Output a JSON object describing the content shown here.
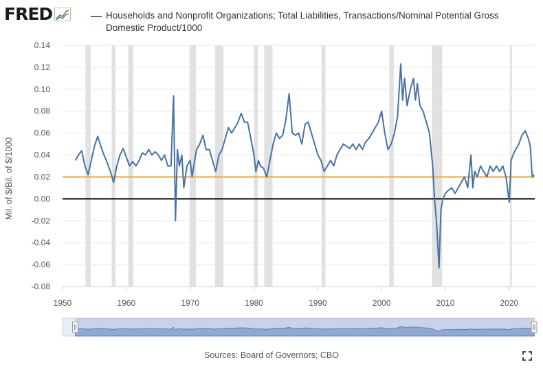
{
  "header": {
    "logo_text": "FRED",
    "legend_label": "Households and Nonprofit Organizations; Total Liabilities, Transactions/Nominal Potential Gross Domestic Product/1000"
  },
  "footer": {
    "sources": "Sources: Board of Governors; CBO"
  },
  "colors": {
    "series": "#4572a7",
    "reference_line": "#f5a623",
    "zero_line": "#000000",
    "recession": "#e1e1e1"
  },
  "icons": {
    "logo": "fred-line-chart-icon",
    "fullscreen": "fullscreen-icon"
  },
  "navigator": {
    "range_start": 1952,
    "range_end": 2023.9
  },
  "chart_data": {
    "type": "line",
    "title": "Households and Nonprofit Organizations; Total Liabilities, Transactions/Nominal Potential Gross Domestic Product/1000",
    "xlabel": "",
    "ylabel": "Mil. of $/Bil. of $/1000",
    "xlim": [
      1950,
      2024
    ],
    "ylim": [
      -0.08,
      0.14
    ],
    "x_ticks": [
      1950,
      1960,
      1970,
      1980,
      1990,
      2000,
      2010,
      2020
    ],
    "y_ticks": [
      -0.08,
      -0.06,
      -0.04,
      -0.02,
      0.0,
      0.02,
      0.04,
      0.06,
      0.08,
      0.1,
      0.12,
      0.14
    ],
    "y_tick_labels": [
      "-0.08",
      "-0.06",
      "-0.04",
      "-0.02",
      "0.00",
      "0.02",
      "0.04",
      "0.06",
      "0.08",
      "0.10",
      "0.12",
      "0.14"
    ],
    "grid": true,
    "reference_lines": [
      {
        "name": "threshold",
        "y": 0.02,
        "color": "#f5a623"
      },
      {
        "name": "zero",
        "y": 0.0,
        "color": "#000000"
      }
    ],
    "recessions": [
      [
        1953.6,
        1954.4
      ],
      [
        1957.7,
        1958.3
      ],
      [
        1960.3,
        1961.1
      ],
      [
        1969.9,
        1970.9
      ],
      [
        1973.9,
        1975.2
      ],
      [
        1980.0,
        1980.6
      ],
      [
        1981.6,
        1982.9
      ],
      [
        1990.6,
        1991.2
      ],
      [
        2001.2,
        2001.9
      ],
      [
        2007.9,
        2009.5
      ],
      [
        2020.1,
        2020.4
      ]
    ],
    "series": [
      {
        "name": "Households and Nonprofit Organizations; Total Liabilities, Transactions/Nominal Potential Gross Domestic Product/1000",
        "x": [
          1952.0,
          1952.5,
          1953.0,
          1953.5,
          1954.0,
          1954.5,
          1955.0,
          1955.5,
          1956.0,
          1956.5,
          1957.0,
          1957.5,
          1958.0,
          1958.5,
          1959.0,
          1959.5,
          1960.0,
          1960.5,
          1961.0,
          1961.5,
          1962.0,
          1962.5,
          1963.0,
          1963.5,
          1964.0,
          1964.5,
          1965.0,
          1965.5,
          1966.0,
          1966.5,
          1967.0,
          1967.4,
          1967.7,
          1968.0,
          1968.3,
          1968.7,
          1969.0,
          1969.5,
          1970.0,
          1970.3,
          1970.7,
          1971.0,
          1971.5,
          1972.0,
          1972.5,
          1973.0,
          1973.5,
          1974.0,
          1974.5,
          1975.0,
          1975.5,
          1976.0,
          1976.5,
          1977.0,
          1977.5,
          1978.0,
          1978.5,
          1979.0,
          1979.5,
          1980.0,
          1980.3,
          1980.7,
          1981.0,
          1981.5,
          1982.0,
          1982.5,
          1983.0,
          1983.5,
          1984.0,
          1984.5,
          1985.0,
          1985.5,
          1986.0,
          1986.5,
          1987.0,
          1987.5,
          1988.0,
          1988.5,
          1989.0,
          1989.5,
          1990.0,
          1990.5,
          1991.0,
          1991.5,
          1992.0,
          1992.5,
          1993.0,
          1993.5,
          1994.0,
          1994.5,
          1995.0,
          1995.5,
          1996.0,
          1996.5,
          1997.0,
          1997.5,
          1998.0,
          1998.5,
          1999.0,
          1999.5,
          2000.0,
          2000.5,
          2001.0,
          2001.5,
          2002.0,
          2002.5,
          2003.0,
          2003.3,
          2003.6,
          2004.0,
          2004.5,
          2005.0,
          2005.3,
          2005.6,
          2006.0,
          2006.5,
          2007.0,
          2007.5,
          2008.0,
          2008.3,
          2008.6,
          2009.0,
          2009.3,
          2009.6,
          2010.0,
          2010.5,
          2011.0,
          2011.5,
          2012.0,
          2012.5,
          2013.0,
          2013.5,
          2014.0,
          2014.3,
          2014.6,
          2015.0,
          2015.5,
          2016.0,
          2016.5,
          2017.0,
          2017.5,
          2018.0,
          2018.5,
          2019.0,
          2019.5,
          2020.0,
          2020.3,
          2020.6,
          2021.0,
          2021.5,
          2022.0,
          2022.5,
          2023.0,
          2023.3,
          2023.6,
          2023.9
        ],
        "y": [
          0.035,
          0.04,
          0.044,
          0.03,
          0.022,
          0.035,
          0.048,
          0.057,
          0.048,
          0.04,
          0.033,
          0.025,
          0.015,
          0.03,
          0.04,
          0.046,
          0.038,
          0.03,
          0.034,
          0.03,
          0.035,
          0.042,
          0.04,
          0.045,
          0.04,
          0.043,
          0.04,
          0.035,
          0.04,
          0.03,
          0.03,
          0.094,
          -0.02,
          0.045,
          0.03,
          0.04,
          0.01,
          0.03,
          0.035,
          0.02,
          0.035,
          0.045,
          0.05,
          0.058,
          0.045,
          0.045,
          0.035,
          0.025,
          0.04,
          0.045,
          0.055,
          0.065,
          0.06,
          0.065,
          0.07,
          0.078,
          0.07,
          0.07,
          0.055,
          0.04,
          0.025,
          0.035,
          0.03,
          0.028,
          0.02,
          0.035,
          0.05,
          0.06,
          0.055,
          0.058,
          0.072,
          0.096,
          0.06,
          0.058,
          0.06,
          0.05,
          0.068,
          0.07,
          0.06,
          0.05,
          0.04,
          0.035,
          0.025,
          0.03,
          0.035,
          0.03,
          0.04,
          0.045,
          0.05,
          0.048,
          0.046,
          0.05,
          0.045,
          0.05,
          0.045,
          0.052,
          0.055,
          0.06,
          0.065,
          0.07,
          0.08,
          0.06,
          0.045,
          0.05,
          0.06,
          0.075,
          0.123,
          0.09,
          0.11,
          0.085,
          0.1,
          0.11,
          0.09,
          0.105,
          0.085,
          0.08,
          0.07,
          0.06,
          0.03,
          0.0,
          -0.02,
          -0.063,
          -0.01,
          0.0,
          0.005,
          0.008,
          0.01,
          0.005,
          0.01,
          0.015,
          0.02,
          0.01,
          0.04,
          0.01,
          0.025,
          0.02,
          0.03,
          0.025,
          0.02,
          0.03,
          0.025,
          0.03,
          0.025,
          0.03,
          0.02,
          -0.003,
          0.035,
          0.04,
          0.045,
          0.05,
          0.058,
          0.062,
          0.055,
          0.048,
          0.02,
          0.022
        ]
      }
    ]
  }
}
